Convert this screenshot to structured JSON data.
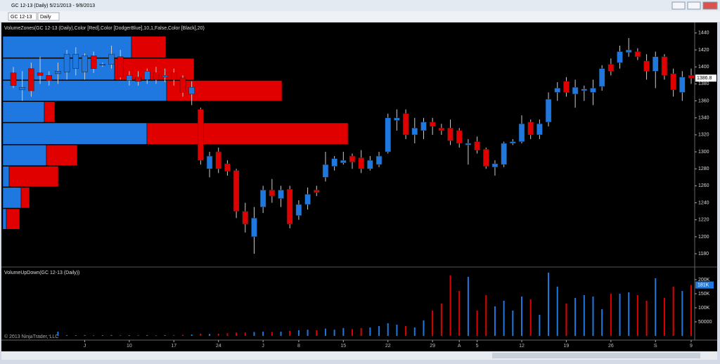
{
  "window": {
    "title": "GC 12-13 (Daily)  5/21/2013 - 9/9/2013",
    "toolbar": [
      "GC 12-13",
      "Daily"
    ]
  },
  "chart_data": {
    "type": "candlestick",
    "indicator_label": "VolumeZones(GC 12-13 (Daily),Color [Red],Color [DodgerBlue],10,1,False,Color [Black],20)",
    "up_color": "#1e78e0",
    "down_color": "#e00000",
    "categories": [
      null,
      null,
      null,
      null,
      null,
      null,
      null,
      null,
      "J",
      null,
      null,
      null,
      null,
      "10",
      null,
      null,
      null,
      null,
      "17",
      null,
      null,
      null,
      null,
      "24",
      null,
      null,
      null,
      null,
      "J",
      null,
      null,
      null,
      "8",
      null,
      null,
      null,
      null,
      "15",
      null,
      null,
      null,
      null,
      "22",
      null,
      null,
      null,
      null,
      "29",
      null,
      null,
      "A",
      null,
      "5",
      null,
      null,
      null,
      null,
      "12",
      null,
      null,
      null,
      null,
      "19",
      null,
      null,
      null,
      null,
      "26",
      null,
      null,
      null,
      null,
      "S",
      null,
      null,
      null,
      "9"
    ],
    "open": [
      1393,
      1373,
      1398,
      1393,
      1390,
      1392,
      1394,
      1398,
      1394,
      1413,
      1402,
      1403,
      1412,
      1384,
      1388,
      1385,
      1393,
      1388,
      1393,
      1387,
      1368,
      1350,
      1280,
      1300,
      1286,
      1278,
      1230,
      1200,
      1235,
      1255,
      1245,
      1256,
      1225,
      1238,
      1255,
      1270,
      1283,
      1287,
      1295,
      1293,
      1280,
      1285,
      1300,
      1337,
      1345,
      1320,
      1325,
      1335,
      1328,
      1328,
      1325,
      1308,
      1312,
      1303,
      1282,
      1285,
      1310,
      1312,
      1335,
      1320,
      1335,
      1370,
      1383,
      1368,
      1372,
      1370,
      1377,
      1403,
      1405,
      1417,
      1418,
      1407,
      1395,
      1412,
      1392,
      1370,
      1390
    ],
    "high": [
      1400,
      1395,
      1405,
      1412,
      1395,
      1405,
      1420,
      1423,
      1416,
      1418,
      1405,
      1425,
      1420,
      1395,
      1395,
      1398,
      1400,
      1398,
      1398,
      1390,
      1383,
      1352,
      1300,
      1305,
      1290,
      1280,
      1240,
      1235,
      1260,
      1268,
      1260,
      1260,
      1243,
      1258,
      1260,
      1300,
      1295,
      1300,
      1298,
      1302,
      1295,
      1300,
      1345,
      1350,
      1350,
      1340,
      1340,
      1340,
      1333,
      1338,
      1328,
      1315,
      1318,
      1305,
      1290,
      1312,
      1315,
      1343,
      1338,
      1338,
      1370,
      1382,
      1388,
      1385,
      1378,
      1385,
      1402,
      1410,
      1425,
      1434,
      1422,
      1415,
      1418,
      1415,
      1398,
      1395,
      1398
    ],
    "low": [
      1375,
      1360,
      1365,
      1380,
      1378,
      1380,
      1385,
      1390,
      1385,
      1393,
      1400,
      1398,
      1385,
      1378,
      1378,
      1380,
      1380,
      1382,
      1378,
      1365,
      1355,
      1285,
      1270,
      1275,
      1272,
      1222,
      1205,
      1180,
      1228,
      1240,
      1235,
      1210,
      1220,
      1232,
      1248,
      1265,
      1278,
      1285,
      1280,
      1275,
      1278,
      1282,
      1298,
      1325,
      1315,
      1310,
      1315,
      1320,
      1320,
      1308,
      1305,
      1285,
      1298,
      1280,
      1272,
      1282,
      1308,
      1310,
      1315,
      1315,
      1330,
      1360,
      1365,
      1352,
      1360,
      1355,
      1372,
      1390,
      1398,
      1412,
      1408,
      1385,
      1375,
      1385,
      1365,
      1360,
      1380
    ],
    "close": [
      1378,
      1376,
      1372,
      1390,
      1384,
      1395,
      1415,
      1415,
      1413,
      1398,
      1403,
      1415,
      1388,
      1390,
      1383,
      1395,
      1385,
      1390,
      1385,
      1370,
      1376,
      1290,
      1295,
      1280,
      1277,
      1230,
      1215,
      1222,
      1255,
      1248,
      1255,
      1215,
      1238,
      1250,
      1252,
      1285,
      1292,
      1290,
      1288,
      1280,
      1290,
      1295,
      1340,
      1340,
      1320,
      1328,
      1335,
      1330,
      1325,
      1313,
      1310,
      1310,
      1302,
      1283,
      1286,
      1310,
      1312,
      1333,
      1320,
      1333,
      1362,
      1375,
      1370,
      1376,
      1374,
      1375,
      1398,
      1395,
      1418,
      1420,
      1412,
      1395,
      1412,
      1390,
      1373,
      1388,
      1386.8
    ],
    "last_label": "1386.8",
    "ylim": [
      1166,
      1449
    ],
    "yticks": [
      1180,
      1200,
      1220,
      1240,
      1260,
      1280,
      1300,
      1320,
      1340,
      1360,
      1380,
      1400,
      1420,
      1440
    ],
    "zones": {
      "price_edges": [
        1436,
        1410,
        1384,
        1359,
        1334,
        1308,
        1283,
        1258,
        1233,
        1208
      ],
      "up": [
        183000,
        159000,
        233000,
        59000,
        205000,
        62000,
        9000,
        26000,
        5000
      ],
      "down": [
        49000,
        113000,
        164000,
        15000,
        286000,
        44000,
        70000,
        12000,
        19000
      ]
    },
    "volume": {
      "label": "VolumeUpDown(GC 12-13 (Daily))",
      "values": [
        3000,
        2000,
        3000,
        2500,
        3000,
        15000,
        3000,
        2500,
        3000,
        3000,
        2500,
        3000,
        3000,
        2500,
        3000,
        3000,
        2500,
        3000,
        3000,
        4000,
        5000,
        8000,
        7000,
        8000,
        9000,
        12000,
        12000,
        14000,
        15000,
        14000,
        15000,
        18000,
        20000,
        22000,
        20000,
        26000,
        22000,
        28000,
        24000,
        28000,
        30000,
        35000,
        45000,
        40000,
        35000,
        30000,
        55000,
        90000,
        115000,
        215000,
        160000,
        210000,
        90000,
        145000,
        105000,
        125000,
        90000,
        140000,
        130000,
        75000,
        225000,
        175000,
        115000,
        135000,
        145000,
        140000,
        95000,
        150000,
        150000,
        155000,
        145000,
        125000,
        205000,
        135000,
        175000,
        160000,
        181000
      ],
      "last_label": "181K",
      "ylim": [
        0,
        240000
      ],
      "yticks": [
        50000,
        {
          "value": 100000,
          "label": "100K"
        },
        {
          "value": 150000,
          "label": "150K"
        },
        {
          "value": 200000,
          "label": "200K"
        }
      ]
    },
    "copyright": "© 2013 NinjaTrader, LLC"
  }
}
